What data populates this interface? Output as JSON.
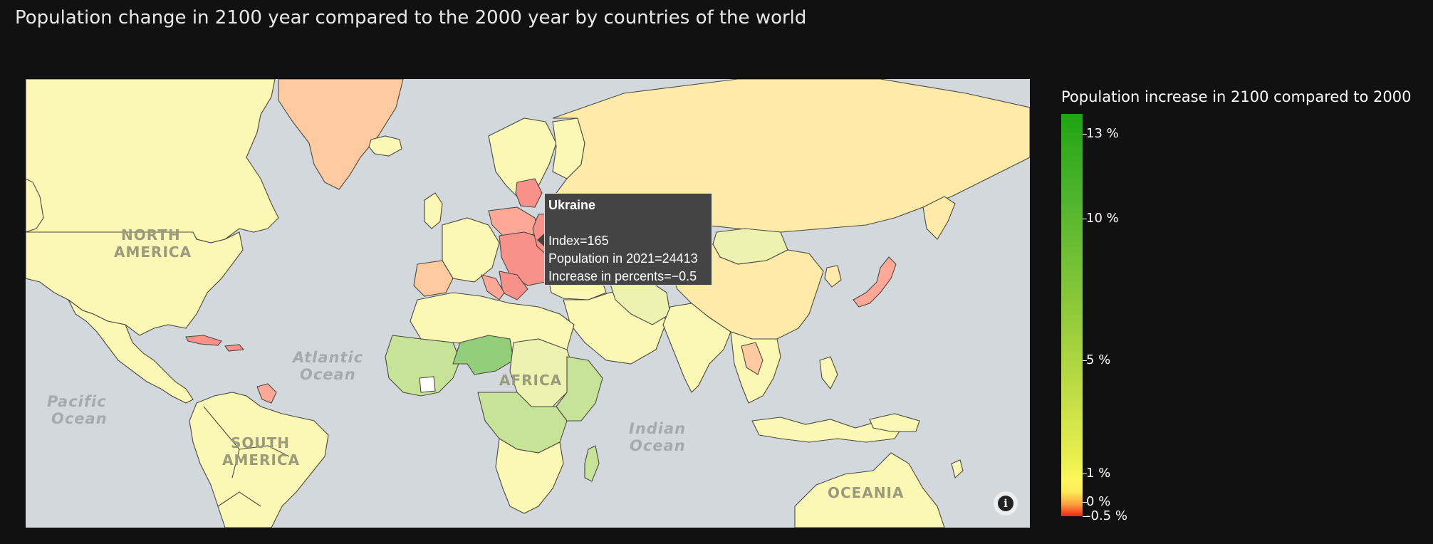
{
  "title": "Population change in 2100 year compared to the 2000 year by countries of the world",
  "map": {
    "ocean_labels": [
      "Pacific",
      "Ocean",
      "Atlantic",
      "Ocean",
      "Indian",
      "Ocean"
    ],
    "continent_labels": [
      "NORTH",
      "AMERICA",
      "SOUTH",
      "AMERICA",
      "AFRICA",
      "OCEANIA"
    ],
    "colors": {
      "ocean": "#d3d8dc",
      "land_pale": "#fbf7b4",
      "land_pale_green": "#eef2b0",
      "land_light_green": "#c6e398",
      "land_green": "#93cf7a",
      "land_orange": "#ffcaa0",
      "land_salmon": "#ffa897",
      "land_red": "#f7918a",
      "land_cream": "#ffeaaa",
      "no_data": "#ffffff"
    }
  },
  "tooltip": {
    "country": "Ukraine",
    "line1": "Index=165",
    "line2": "Population in 2021=24413",
    "line3": "Increase in percents=−0.5"
  },
  "legend": {
    "title": "Population increase in 2100 compared to 2000",
    "ticks": [
      {
        "label": "13 %",
        "value": 13
      },
      {
        "label": "10 %",
        "value": 10
      },
      {
        "label": "5 %",
        "value": 5
      },
      {
        "label": "1 %",
        "value": 1
      },
      {
        "label": "0 %",
        "value": 0
      },
      {
        "label": "-0.5 %",
        "value": -0.5
      }
    ],
    "range": [
      -0.5,
      13.7
    ]
  },
  "info_icon": "info-icon"
}
